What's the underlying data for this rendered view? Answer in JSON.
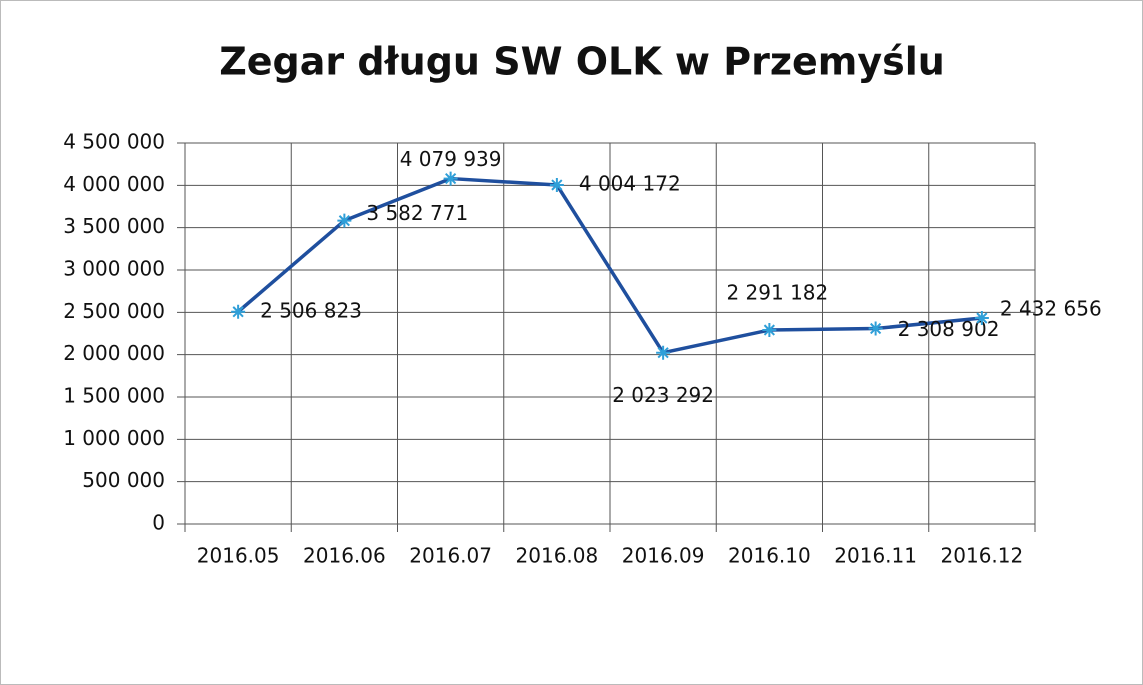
{
  "chart_data": {
    "type": "line",
    "title": "Zegar długu SW OLK w Przemyślu",
    "categories": [
      "2016.05",
      "2016.06",
      "2016.07",
      "2016.08",
      "2016.09",
      "2016.10",
      "2016.11",
      "2016.12"
    ],
    "series": [
      {
        "name": null,
        "color": "#1f4f9e",
        "marker_color": "#2f9fd8",
        "values": [
          2506823,
          3582771,
          4079939,
          4004172,
          2023292,
          2291182,
          2308902,
          2432656
        ],
        "value_labels": [
          "2 506 823",
          "3 582 771",
          "4 079 939",
          "4 004 172",
          "2 023 292",
          "2 291 182",
          "2 308 902",
          "2 432 656"
        ]
      }
    ],
    "ylim": [
      0,
      4500000
    ],
    "yticks": [
      0,
      {
        "value": 500000,
        "label": "500 000"
      },
      {
        "value": 1000000,
        "label": "1 000 000"
      },
      {
        "value": 1500000,
        "label": "1 500 000"
      },
      {
        "value": 2000000,
        "label": "2 000 000"
      },
      {
        "value": 2500000,
        "label": "2 500 000"
      },
      {
        "value": 3000000,
        "label": "3 000 000"
      },
      {
        "value": 3500000,
        "label": "3 500 000"
      },
      {
        "value": 4000000,
        "label": "4 000 000"
      },
      {
        "value": 4500000,
        "label": "4 500 000"
      }
    ],
    "grid": true
  }
}
